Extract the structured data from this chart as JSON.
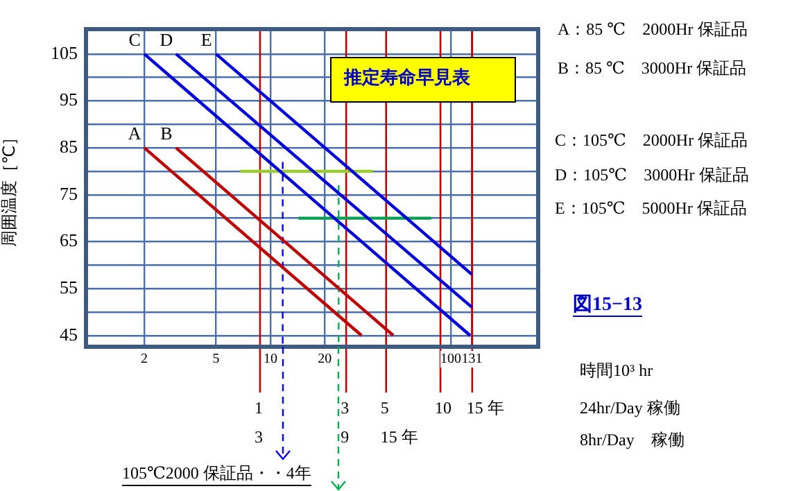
{
  "chart_data": {
    "type": "line",
    "title": "推定寿命早見表",
    "xlabel": "時間10³ hr",
    "ylabel": "周囲温度［℃］",
    "log": "x",
    "xlim": [
      0.95,
      305
    ],
    "xticks": [
      2,
      5,
      10,
      20,
      100,
      131
    ],
    "ylim": [
      42.6,
      110.3
    ],
    "yticks": [
      45,
      {
        "value": 50,
        "label": null
      },
      55,
      {
        "value": 60,
        "label": null
      },
      65,
      {
        "value": 70,
        "label": null
      },
      75,
      {
        "value": 80,
        "label": null
      },
      85,
      {
        "value": 90,
        "label": null
      },
      95,
      {
        "value": 100,
        "label": null
      },
      105
    ],
    "grid": true,
    "legend": false,
    "marker": "none",
    "series": [
      {
        "name": "A",
        "color": "#c00000",
        "x": [
          2,
          32
        ],
        "values": [
          85,
          45
        ]
      },
      {
        "name": "B",
        "color": "#c00000",
        "x": [
          3,
          48
        ],
        "values": [
          85,
          45
        ]
      },
      {
        "name": "C",
        "color": "#0000dd",
        "x": [
          2,
          128
        ],
        "values": [
          105,
          45
        ]
      },
      {
        "name": "D",
        "color": "#0000dd",
        "x": [
          3,
          131
        ],
        "values": [
          105,
          51
        ]
      },
      {
        "name": "E",
        "color": "#0000dd",
        "x": [
          5,
          131
        ],
        "values": [
          105,
          58
        ]
      },
      {
        "color": "#99cc33",
        "x": [
          6.8,
          37
        ],
        "values": [
          80,
          80
        ]
      },
      {
        "color": "#00a050",
        "x": [
          14.3,
          78
        ],
        "values": [
          70,
          70
        ]
      },
      {
        "color": "#0000ff",
        "x": [
          11.7,
          11.7
        ],
        "values": [
          82,
          42.6
        ],
        "line_style": "dashed"
      },
      {
        "color": "#00b050",
        "x": [
          23.9,
          23.9
        ],
        "values": [
          77,
          42.6
        ],
        "line_style": "dashed"
      }
    ],
    "ref_lines": [
      {
        "axis": "x",
        "value": 8.76,
        "color": "#c00000"
      },
      {
        "axis": "x",
        "value": 26.3,
        "color": "#c00000"
      },
      {
        "axis": "x",
        "value": 43.8,
        "color": "#c00000"
      },
      {
        "axis": "x",
        "value": 87.6,
        "color": "#c00000"
      },
      {
        "axis": "x",
        "value": 131.4,
        "color": "#c00000"
      }
    ],
    "annotations": [
      "A：85 ℃　2000Hr 保証品",
      "B：85 ℃　3000Hr 保証品",
      "C：105℃　2000Hr 保証品",
      "D：105℃　3000Hr 保証品",
      "E：105℃　5000Hr 保証品",
      "図15−13",
      "24hr/Day 稼働",
      "8hr/Day　稼働",
      "105℃2000 保証品・・4年",
      "1",
      "3",
      "5",
      "10",
      "15 年",
      "3",
      "9",
      "15 年"
    ]
  }
}
